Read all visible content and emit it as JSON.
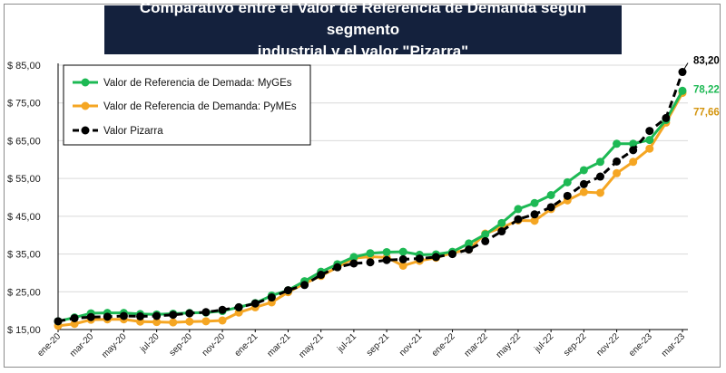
{
  "title_lines": [
    "Comparativo entre el Valor de Referencia de Demanda según segmento",
    "industrial y el valor \"Pizarra\""
  ],
  "chart_data": {
    "type": "line",
    "title": "Comparativo entre el Valor de Referencia de Demanda según segmento industrial y el valor \"Pizarra\"",
    "xlabel": "",
    "ylabel": "",
    "ylim": [
      15,
      85
    ],
    "yticks": [
      15,
      25,
      35,
      45,
      55,
      65,
      75,
      85
    ],
    "ytick_labels": [
      "$ 15,00",
      "$ 25,00",
      "$ 35,00",
      "$ 45,00",
      "$ 55,00",
      "$ 65,00",
      "$ 75,00",
      "$ 85,00"
    ],
    "grid": true,
    "legend_position": "top-left",
    "x": [
      "ene-20",
      "feb-20",
      "mar-20",
      "abr-20",
      "may-20",
      "jun-20",
      "jul-20",
      "ago-20",
      "sep-20",
      "oct-20",
      "nov-20",
      "dic-20",
      "ene-21",
      "feb-21",
      "mar-21",
      "abr-21",
      "may-21",
      "jun-21",
      "jul-21",
      "ago-21",
      "sep-21",
      "oct-21",
      "nov-21",
      "dic-21",
      "ene-22",
      "feb-22",
      "mar-22",
      "abr-22",
      "may-22",
      "jun-22",
      "jul-22",
      "ago-22",
      "sep-22",
      "oct-22",
      "nov-22",
      "dic-22",
      "ene-23",
      "feb-23",
      "mar-23"
    ],
    "xtick_labels": [
      "ene-20",
      "mar-20",
      "may-20",
      "jul-20",
      "sep-20",
      "nov-20",
      "ene-21",
      "mar-21",
      "may-21",
      "jul-21",
      "sep-21",
      "nov-21",
      "ene-22",
      "mar-22",
      "may-22",
      "jul-22",
      "sep-22",
      "nov-22",
      "ene-23",
      "mar-23"
    ],
    "series": [
      {
        "name": "Valor de Referencia de Demada: MyGEs",
        "color": "#1db954",
        "style": "solid",
        "values": [
          17.2,
          18.2,
          19.3,
          19.4,
          19.4,
          19.1,
          19.0,
          19.2,
          19.4,
          19.5,
          19.9,
          20.9,
          22.0,
          24.0,
          25.4,
          27.8,
          30.3,
          32.3,
          34.2,
          35.2,
          35.5,
          35.6,
          34.8,
          34.9,
          35.6,
          37.8,
          40.2,
          43.2,
          46.9,
          48.5,
          50.6,
          54.0,
          57.2,
          59.4,
          64.2,
          64.2,
          65.2,
          70.5,
          78.22
        ]
      },
      {
        "name": "Valor de Referencia de Demanda: PyMEs",
        "color": "#f5a623",
        "style": "solid",
        "values": [
          16.0,
          16.5,
          17.6,
          17.7,
          17.7,
          17.1,
          17.0,
          16.9,
          17.1,
          17.2,
          17.4,
          19.5,
          20.9,
          22.2,
          24.9,
          27.2,
          29.2,
          31.5,
          33.9,
          34.3,
          34.1,
          31.9,
          33.2,
          34.0,
          35.3,
          36.2,
          40.4,
          42.0,
          43.9,
          43.8,
          46.9,
          49.2,
          51.4,
          51.2,
          56.4,
          59.4,
          62.9,
          69.8,
          77.66
        ]
      },
      {
        "name": "Valor Pizarra",
        "color": "#000000",
        "style": "dashed",
        "values": [
          17.2,
          18.0,
          18.3,
          18.4,
          18.6,
          18.5,
          18.6,
          18.9,
          19.3,
          19.6,
          20.2,
          20.9,
          21.9,
          23.5,
          25.4,
          26.8,
          29.5,
          31.5,
          32.5,
          32.8,
          33.4,
          33.6,
          33.8,
          34.2,
          35.0,
          36.2,
          38.4,
          41.0,
          44.2,
          45.5,
          47.4,
          50.4,
          53.5,
          55.5,
          59.5,
          62.5,
          67.6,
          71.0,
          83.2
        ]
      }
    ],
    "end_labels": [
      "83,20",
      "78,22",
      "77,66"
    ],
    "end_label_colors": [
      "#000000",
      "#1db954",
      "#d4950f"
    ]
  }
}
